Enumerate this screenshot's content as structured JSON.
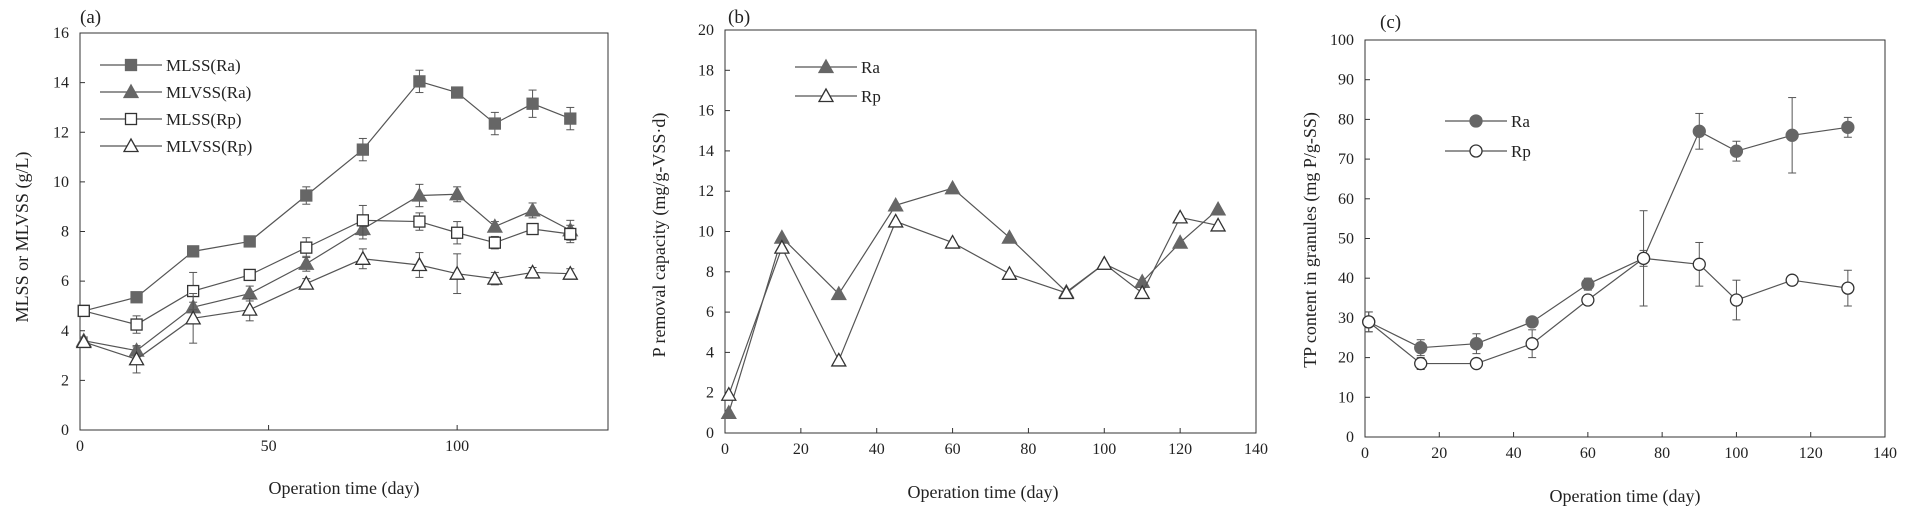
{
  "colors": {
    "filled": "#666666",
    "line": "#555555",
    "axis": "#333333",
    "error": "#555555",
    "open": "#ffffff"
  },
  "chart_data": [
    {
      "id": "a",
      "type": "line",
      "panel_label": "(a)",
      "xlabel": "Operation time (day)",
      "ylabel": "MLSS or MLVSS (g/L)",
      "xlim": [
        0,
        140
      ],
      "ylim": [
        0,
        16
      ],
      "xticks": [
        0,
        50,
        100
      ],
      "yticks": [
        0,
        2,
        4,
        6,
        8,
        10,
        12,
        14,
        16
      ],
      "legend_position": "top-left",
      "series": [
        {
          "name": "MLSS(Ra)",
          "marker": "square",
          "filled": true,
          "x": [
            1,
            15,
            30,
            45,
            60,
            75,
            90,
            100,
            110,
            120,
            130
          ],
          "y": [
            4.8,
            5.35,
            7.2,
            7.6,
            9.45,
            11.3,
            14.05,
            13.6,
            12.35,
            13.15,
            12.55
          ],
          "err": [
            0.15,
            0.15,
            0.15,
            0.15,
            0.35,
            0.45,
            0.45,
            0.15,
            0.45,
            0.55,
            0.45
          ]
        },
        {
          "name": "MLVSS(Ra)",
          "marker": "triangle",
          "filled": true,
          "x": [
            1,
            15,
            30,
            45,
            60,
            75,
            90,
            100,
            110,
            120,
            130
          ],
          "y": [
            3.6,
            3.2,
            4.95,
            5.5,
            6.7,
            8.1,
            9.45,
            9.5,
            8.2,
            8.85,
            8.05
          ],
          "err": [
            0.15,
            0.15,
            0.2,
            0.3,
            0.3,
            0.4,
            0.45,
            0.3,
            0.2,
            0.3,
            0.4
          ]
        },
        {
          "name": "MLSS(Rp)",
          "marker": "square",
          "filled": false,
          "x": [
            1,
            15,
            30,
            45,
            60,
            75,
            90,
            100,
            110,
            120,
            130
          ],
          "y": [
            4.8,
            4.25,
            5.6,
            6.25,
            7.35,
            8.45,
            8.4,
            7.95,
            7.55,
            8.1,
            7.9
          ],
          "err": [
            0.15,
            0.35,
            0.75,
            0.2,
            0.4,
            0.6,
            0.35,
            0.45,
            0.25,
            0.2,
            0.35
          ]
        },
        {
          "name": "MLVSS(Rp)",
          "marker": "triangle",
          "filled": false,
          "x": [
            1,
            15,
            30,
            45,
            60,
            75,
            90,
            100,
            110,
            120,
            130
          ],
          "y": [
            3.55,
            2.85,
            4.5,
            4.85,
            5.9,
            6.9,
            6.65,
            6.3,
            6.1,
            6.35,
            6.3
          ],
          "err": [
            0.15,
            0.55,
            1.0,
            0.45,
            0.2,
            0.4,
            0.5,
            0.8,
            0.25,
            0.2,
            0.2
          ]
        }
      ]
    },
    {
      "id": "b",
      "type": "line",
      "panel_label": "(b)",
      "xlabel": "Operation time (day)",
      "ylabel": "P removal capacity (mg/g-VSS·d)",
      "xlim": [
        0,
        140
      ],
      "ylim": [
        0,
        20
      ],
      "xticks": [
        0,
        20,
        40,
        60,
        80,
        100,
        120,
        140
      ],
      "yticks": [
        0,
        2,
        4,
        6,
        8,
        10,
        12,
        14,
        16,
        18,
        20
      ],
      "legend_position": "top-left",
      "series": [
        {
          "name": "Ra",
          "marker": "triangle",
          "filled": true,
          "x": [
            1,
            15,
            30,
            45,
            60,
            75,
            90,
            100,
            110,
            120,
            130
          ],
          "y": [
            1.0,
            9.7,
            6.9,
            11.3,
            12.15,
            9.7,
            7.0,
            8.4,
            7.5,
            9.45,
            11.1
          ]
        },
        {
          "name": "Rp",
          "marker": "triangle",
          "filled": false,
          "x": [
            1,
            15,
            30,
            45,
            60,
            75,
            90,
            100,
            110,
            120,
            130
          ],
          "y": [
            1.9,
            9.2,
            3.6,
            10.5,
            9.45,
            7.9,
            6.95,
            8.4,
            6.95,
            10.7,
            10.3
          ]
        }
      ]
    },
    {
      "id": "c",
      "type": "line",
      "panel_label": "(c)",
      "xlabel": "Operation time (day)",
      "ylabel": "TP content in granules (mg P/g-SS)",
      "xlim": [
        0,
        140
      ],
      "ylim": [
        0,
        100
      ],
      "xticks": [
        0,
        20,
        40,
        60,
        80,
        100,
        120,
        140
      ],
      "yticks": [
        0,
        10,
        20,
        30,
        40,
        50,
        60,
        70,
        80,
        90,
        100
      ],
      "legend_position": "upper-left",
      "series": [
        {
          "name": "Ra",
          "marker": "circle",
          "filled": true,
          "x": [
            1,
            15,
            30,
            45,
            60,
            75,
            90,
            100,
            115,
            130
          ],
          "y": [
            29,
            22.5,
            23.5,
            29,
            38.5,
            45,
            77,
            72,
            76,
            78
          ],
          "err": [
            2.5,
            2.0,
            2.5,
            1.0,
            1.5,
            12.0,
            4.5,
            2.5,
            9.5,
            2.5
          ]
        },
        {
          "name": "Rp",
          "marker": "circle",
          "filled": false,
          "x": [
            1,
            15,
            30,
            45,
            60,
            75,
            90,
            100,
            115,
            130
          ],
          "y": [
            29,
            18.5,
            18.5,
            23.5,
            34.5,
            45,
            43.5,
            34.5,
            39.5,
            37.5
          ],
          "err": [
            2.5,
            1.5,
            1.0,
            3.5,
            1.0,
            2.0,
            5.5,
            5.0,
            0.5,
            4.5
          ]
        }
      ]
    }
  ]
}
